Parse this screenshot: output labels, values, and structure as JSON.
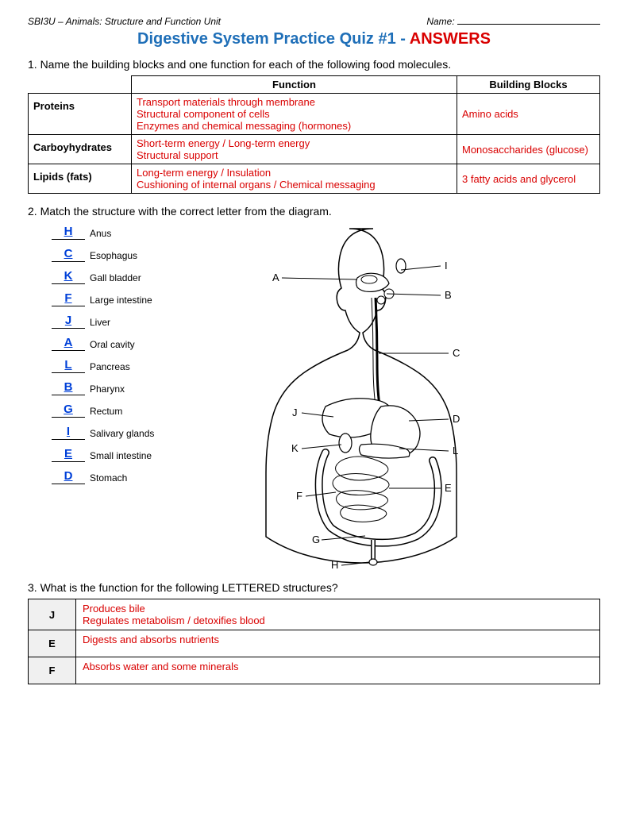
{
  "header": {
    "course": "SBI3U – Animals: Structure and Function Unit",
    "name_label": "Name:"
  },
  "title": {
    "main": "Digestive System Practice Quiz #1 - ",
    "answers": "ANSWERS",
    "main_color": "#1f6fb8",
    "answers_color": "#d90000"
  },
  "q1": {
    "prompt": "1. Name the building blocks and one function for each of the following food molecules.",
    "columns": [
      "Function",
      "Building Blocks"
    ],
    "rows": [
      {
        "label": "Proteins",
        "function": "Transport materials through membrane\nStructural component of cells\nEnzymes and chemical messaging (hormones)",
        "blocks": "Amino acids"
      },
      {
        "label": "Carboyhydrates",
        "function": "Short-term energy   /   Long-term energy\nStructural support",
        "blocks": "Monosaccharides (glucose)"
      },
      {
        "label": "Lipids (fats)",
        "function": "Long-term energy   /  Insulation\nCushioning of internal organs  / Chemical messaging",
        "blocks": "3 fatty acids and glycerol"
      }
    ]
  },
  "q2": {
    "prompt": "2. Match the structure with the correct letter from the diagram.",
    "answer_color": "#0040d8",
    "items": [
      {
        "letter": "H",
        "organ": "Anus"
      },
      {
        "letter": "C",
        "organ": "Esophagus"
      },
      {
        "letter": "K",
        "organ": "Gall bladder"
      },
      {
        "letter": "",
        "organ": ""
      },
      {
        "letter": "F",
        "organ": "Large intestine"
      },
      {
        "letter": "J",
        "organ": "Liver"
      },
      {
        "letter": "",
        "organ": ""
      },
      {
        "letter": "A",
        "organ": "Oral cavity"
      },
      {
        "letter": "L",
        "organ": "Pancreas"
      },
      {
        "letter": "",
        "organ": ""
      },
      {
        "letter": "B",
        "organ": "Pharynx"
      },
      {
        "letter": "G",
        "organ": "Rectum"
      },
      {
        "letter": "",
        "organ": ""
      },
      {
        "letter": "I",
        "organ": "Salivary glands"
      },
      {
        "letter": "E",
        "organ": "Small intestine"
      },
      {
        "letter": "",
        "organ": ""
      },
      {
        "letter": "D",
        "organ": "Stomach"
      }
    ],
    "diagram_labels": [
      "A",
      "B",
      "C",
      "D",
      "E",
      "F",
      "G",
      "H",
      "I",
      "J",
      "K",
      "L"
    ]
  },
  "q3": {
    "prompt": "3. What is the function for the following LETTERED structures?",
    "rows": [
      {
        "key": "J",
        "ans": "Produces bile\nRegulates metabolism   / detoxifies blood"
      },
      {
        "key": "E",
        "ans": "Digests and absorbs nutrients"
      },
      {
        "key": "F",
        "ans": "Absorbs water and some minerals"
      }
    ]
  },
  "colors": {
    "answer_red": "#d90000",
    "answer_blue": "#0040d8",
    "title_blue": "#1f6fb8",
    "border": "#000000",
    "key_bg": "#f0f0f0"
  }
}
